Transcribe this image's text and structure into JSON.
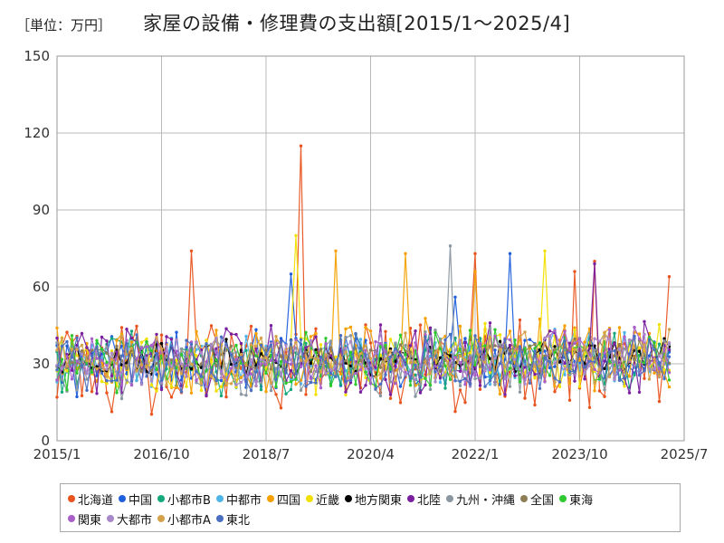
{
  "chart_data": {
    "type": "line",
    "unit_label": "［単位：万円］",
    "title": "家屋の設備・修理費の支出額[2015/1～2025/4]",
    "xlabel": "",
    "ylabel": "",
    "ylim": [
      0,
      150
    ],
    "y_ticks": [
      0,
      30,
      60,
      90,
      120,
      150
    ],
    "x_range": [
      "2015-01",
      "2025-07"
    ],
    "x_tick_labels": [
      "2015/1",
      "2016/10",
      "2018/7",
      "2020/4",
      "2022/1",
      "2023/10",
      "2025/7"
    ],
    "grid": true,
    "legend_position": "bottom",
    "x_start": "2015-01",
    "x_end": "2025-04",
    "series": [
      {
        "name": "北海道",
        "color": "#e8531e",
        "base": 28,
        "amp": 15,
        "seed": 11,
        "highlights": [
          [
            49,
            115
          ],
          [
            27,
            74
          ],
          [
            84,
            73
          ],
          [
            104,
            66
          ],
          [
            108,
            70
          ],
          [
            123,
            64
          ]
        ]
      },
      {
        "name": "中国",
        "color": "#1f5fdc",
        "base": 31,
        "amp": 11,
        "seed": 23,
        "highlights": [
          [
            47,
            65
          ],
          [
            80,
            56
          ],
          [
            91,
            73
          ]
        ]
      },
      {
        "name": "小都市B",
        "color": "#14a87a",
        "base": 30,
        "amp": 10,
        "seed": 37,
        "highlights": []
      },
      {
        "name": "中都市",
        "color": "#4fb4e8",
        "base": 31,
        "amp": 9,
        "seed": 41,
        "highlights": []
      },
      {
        "name": "四国",
        "color": "#f5a000",
        "base": 32,
        "amp": 12,
        "seed": 53,
        "highlights": [
          [
            56,
            74
          ],
          [
            70,
            73
          ],
          [
            84,
            66
          ]
        ]
      },
      {
        "name": "近畿",
        "color": "#f2e000",
        "base": 31,
        "amp": 11,
        "seed": 61,
        "highlights": [
          [
            48,
            80
          ],
          [
            98,
            74
          ]
        ]
      },
      {
        "name": "地方関東",
        "color": "#000000",
        "base": 32,
        "amp": 6,
        "seed": 71,
        "highlights": []
      },
      {
        "name": "北陸",
        "color": "#7a1fa0",
        "base": 30,
        "amp": 12,
        "seed": 83,
        "highlights": [
          [
            108,
            69
          ]
        ]
      },
      {
        "name": "九州・沖縄",
        "color": "#8a96a0",
        "base": 30,
        "amp": 11,
        "seed": 97,
        "highlights": [
          [
            79,
            76
          ]
        ]
      },
      {
        "name": "全国",
        "color": "#8e7d55",
        "base": 32,
        "amp": 5,
        "seed": 101,
        "highlights": []
      },
      {
        "name": "東海",
        "color": "#2ec92e",
        "base": 31,
        "amp": 10,
        "seed": 113,
        "highlights": []
      },
      {
        "name": "関東",
        "color": "#a85fc8",
        "base": 31,
        "amp": 9,
        "seed": 127,
        "highlights": []
      },
      {
        "name": "大都市",
        "color": "#a888c8",
        "base": 31,
        "amp": 9,
        "seed": 131,
        "highlights": []
      },
      {
        "name": "小都市A",
        "color": "#d4a24a",
        "base": 31,
        "amp": 9,
        "seed": 139,
        "highlights": []
      },
      {
        "name": "東北",
        "color": "#4a6fc0",
        "base": 30,
        "amp": 10,
        "seed": 149,
        "highlights": []
      }
    ]
  }
}
